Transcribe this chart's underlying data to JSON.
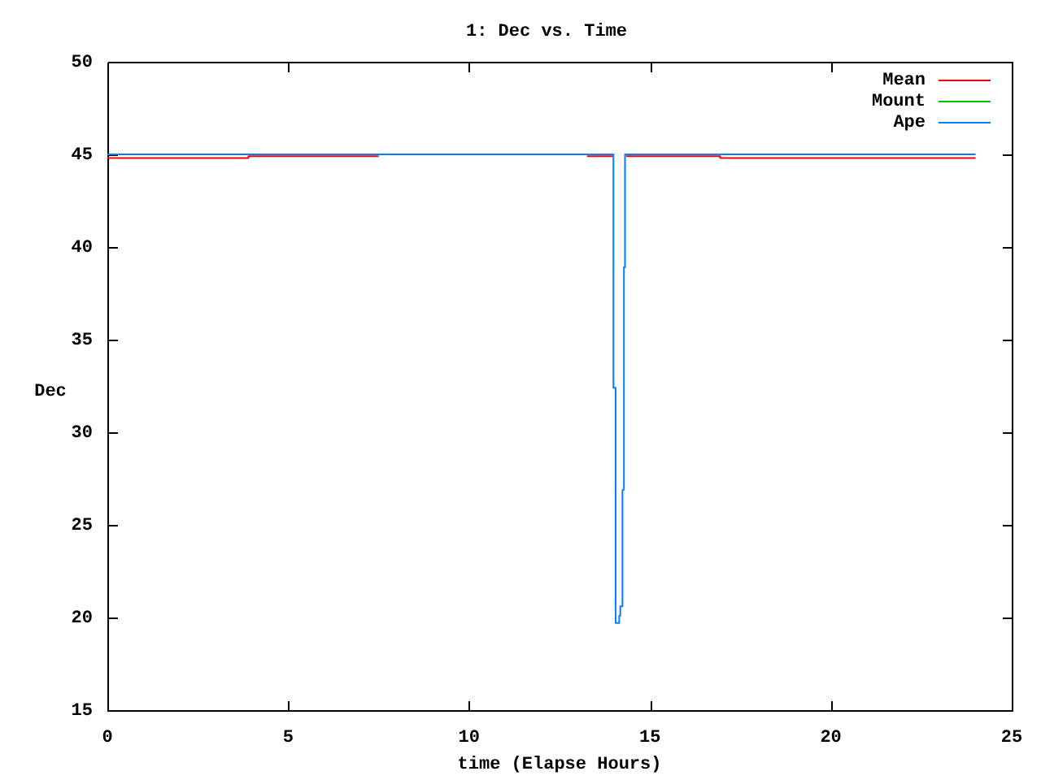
{
  "chart_data": {
    "type": "step",
    "title": "1: Dec vs. Time",
    "xlabel": "time (Elapse Hours)",
    "ylabel": "Dec",
    "xlim": [
      0,
      25
    ],
    "ylim": [
      15,
      50
    ],
    "xticks": [
      0,
      5,
      10,
      15,
      20,
      25
    ],
    "yticks": [
      15,
      20,
      25,
      30,
      35,
      40,
      45,
      50
    ],
    "legend": "top right",
    "series": [
      {
        "name": "Mean",
        "color": "#ff0000",
        "x": [
          0,
          3.9,
          7.5,
          13.26,
          13.97,
          14.34,
          16.94,
          24
        ],
        "values": [
          44.8,
          44.9,
          null,
          44.9,
          null,
          44.9,
          44.8,
          44.8
        ]
      },
      {
        "name": "Mount",
        "color": "#00c000"
      },
      {
        "name": "Ape",
        "color": "#0080ff",
        "x": [
          0,
          13.99,
          14.05,
          14.15,
          14.18,
          14.24,
          14.28,
          14.31,
          24
        ],
        "values": [
          45,
          32.4,
          19.7,
          20.1,
          20.6,
          26.9,
          38.9,
          45,
          45
        ]
      }
    ]
  }
}
